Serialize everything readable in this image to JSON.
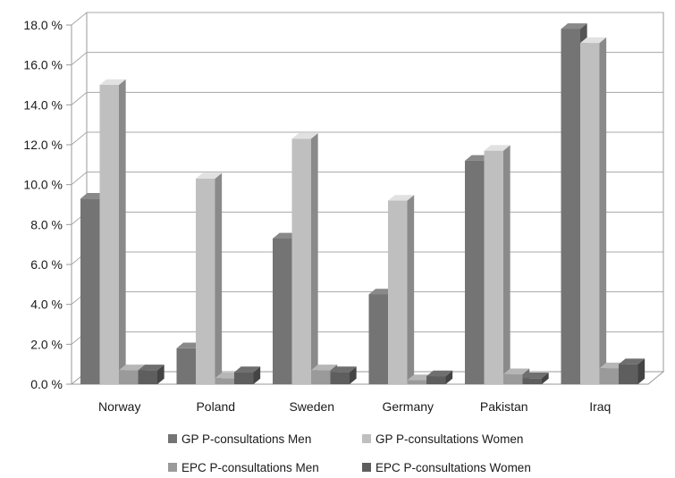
{
  "chart_data": {
    "type": "bar",
    "title": "",
    "xlabel": "",
    "ylabel": "",
    "ylim": [
      0,
      18
    ],
    "y_tick_step": 2,
    "y_tick_labels": [
      "0.0 %",
      "2.0 %",
      "4.0 %",
      "6.0 %",
      "8.0 %",
      "10.0 %",
      "12.0 %",
      "14.0 %",
      "16.0 %",
      "18.0 %"
    ],
    "categories": [
      "Norway",
      "Poland",
      "Sweden",
      "Germany",
      "Pakistan",
      "Iraq"
    ],
    "series": [
      {
        "name": "GP P-consultations Men",
        "color": "#747474",
        "values": [
          9.3,
          1.8,
          7.3,
          4.5,
          11.2,
          17.8
        ]
      },
      {
        "name": "GP P-consultations Women",
        "color": "#bfbfbf",
        "values": [
          15.0,
          10.3,
          12.3,
          9.2,
          11.7,
          17.1
        ]
      },
      {
        "name": "EPC P-consultations Men",
        "color": "#9a9a9a",
        "values": [
          0.7,
          0.3,
          0.7,
          0.2,
          0.5,
          0.8
        ]
      },
      {
        "name": "EPC P-consultations Women",
        "color": "#5e5e5e",
        "values": [
          0.7,
          0.6,
          0.6,
          0.4,
          0.3,
          1.0
        ]
      }
    ],
    "grid": true,
    "style": "3d-clustered-column",
    "legend_position": "bottom"
  }
}
